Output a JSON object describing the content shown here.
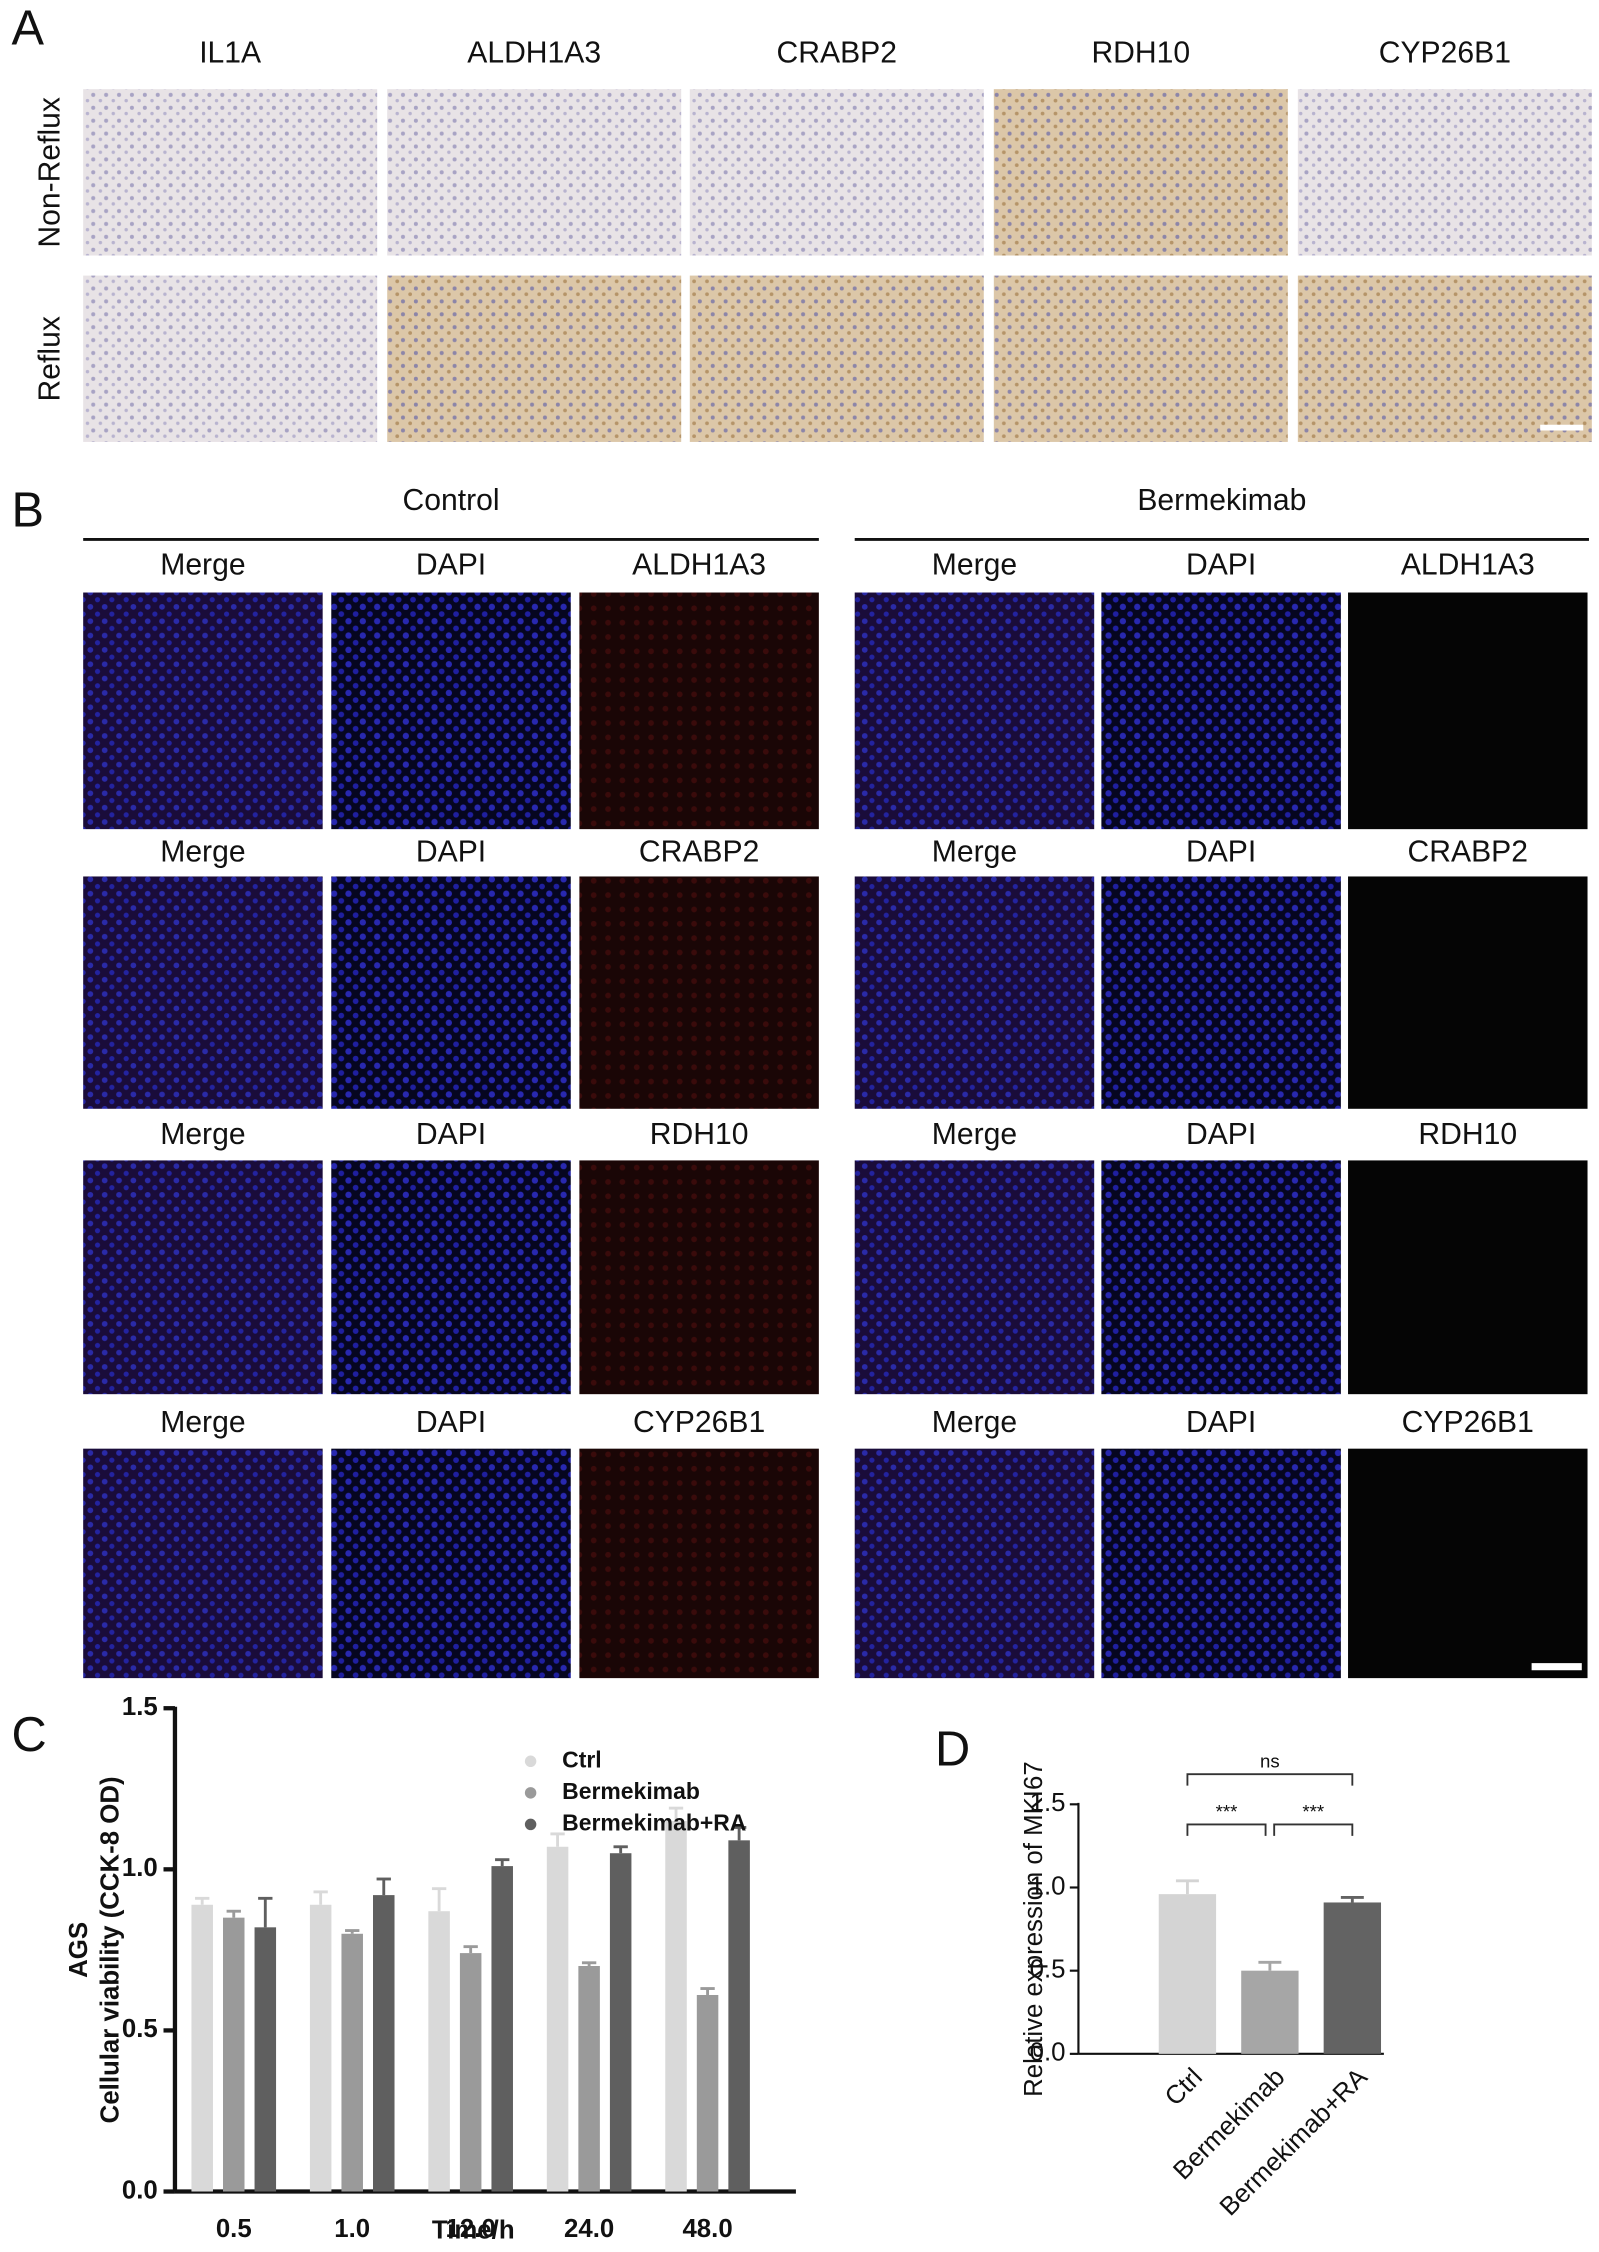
{
  "panel_labels": [
    "A",
    "B",
    "C",
    "D"
  ],
  "panel_a": {
    "columns": [
      "IL1A",
      "ALDH1A3",
      "CRABP2",
      "RDH10",
      "CYP26B1"
    ],
    "rows": [
      "Non-Reflux",
      "Reflux"
    ]
  },
  "panel_b": {
    "groups": [
      "Control",
      "Bermekimab"
    ],
    "rows": [
      [
        "Merge",
        "DAPI",
        "ALDH1A3"
      ],
      [
        "Merge",
        "DAPI",
        "CRABP2"
      ],
      [
        "Merge",
        "DAPI",
        "RDH10"
      ],
      [
        "Merge",
        "DAPI",
        "CYP26B1"
      ]
    ]
  },
  "chart_data": [
    {
      "type": "bar",
      "y_title": "AGS",
      "ylabel": "Cellular viability (CCK-8 OD)",
      "xlabel": "Time/h",
      "categories": [
        "0.5",
        "1.0",
        "12.0",
        "24.0",
        "48.0"
      ],
      "series": [
        {
          "name": "Ctrl",
          "color": "#d9d9d9",
          "values": [
            0.89,
            0.89,
            0.87,
            1.07,
            1.15
          ],
          "errors": [
            0.02,
            0.04,
            0.07,
            0.04,
            0.04
          ]
        },
        {
          "name": "Bermekimab",
          "color": "#9a9a9a",
          "values": [
            0.85,
            0.8,
            0.74,
            0.7,
            0.61
          ],
          "errors": [
            0.02,
            0.01,
            0.02,
            0.01,
            0.02
          ]
        },
        {
          "name": "Bermekimab+RA",
          "color": "#5f5f5f",
          "values": [
            0.82,
            0.92,
            1.01,
            1.05,
            1.09
          ],
          "errors": [
            0.09,
            0.05,
            0.02,
            0.02,
            0.04
          ]
        }
      ],
      "ylim": [
        0,
        1.5
      ],
      "yticks": [
        {
          "value": 0,
          "label": "0.0"
        },
        0.5,
        {
          "value": 1,
          "label": "1.0"
        },
        1.5
      ],
      "legend": "top-right"
    },
    {
      "type": "bar",
      "ylabel": "Relative expression of MKI67",
      "categories": [
        "Ctrl",
        "Bermekimab",
        "Bermekimab+RA"
      ],
      "values": [
        0.96,
        0.5,
        0.91
      ],
      "errors": [
        0.08,
        0.05,
        0.03
      ],
      "colors": [
        "#d4d4d4",
        "#a6a6a6",
        "#636363"
      ],
      "ylim": [
        0,
        1.5
      ],
      "yticks": [
        {
          "value": 0,
          "label": "0.0"
        },
        0.5,
        {
          "value": 1,
          "label": "1.0"
        },
        1.5
      ],
      "annotations": [
        {
          "text": "ns",
          "pair": [
            "Ctrl",
            "Bermekimab+RA"
          ]
        },
        {
          "text": "***",
          "pair": [
            "Ctrl",
            "Bermekimab"
          ]
        },
        {
          "text": "***",
          "pair": [
            "Bermekimab",
            "Bermekimab+RA"
          ]
        }
      ]
    }
  ]
}
